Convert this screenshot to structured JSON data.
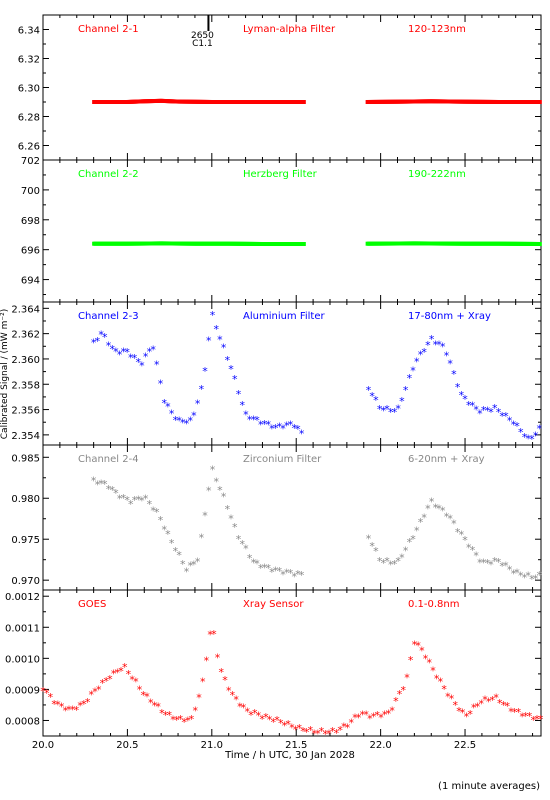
{
  "figure": {
    "xlabel": "Time / h UTC, 30 Jan 2028",
    "ylabel": "Calibrated Signal / (mW m⁻²)",
    "footnote": "(1 minute averages)",
    "marker": {
      "x": 20.98,
      "labels": [
        "2650",
        "C1.1"
      ]
    }
  },
  "colors": {
    "axis": "#000000",
    "red": "#ff0000",
    "green": "#00ff00",
    "blue": "#0000ff",
    "grey": "#888888"
  },
  "chart_data": [
    {
      "type": "scatter",
      "panel": "Channel 2-1",
      "labels": {
        "left": "Channel 2-1",
        "mid": "Lyman-alpha Filter",
        "right": "120-123nm"
      },
      "color": "#ff0000",
      "xlim": [
        20.0,
        22.95
      ],
      "ylim": [
        6.25,
        6.35
      ],
      "yticks": [
        "6.26",
        "6.28",
        "6.30",
        "6.32",
        "6.34"
      ],
      "gaps": [
        [
          21.55,
          21.92
        ]
      ],
      "series": [
        {
          "x": [
            20.3,
            20.5,
            20.6,
            20.7,
            20.8,
            21.0,
            21.2,
            21.4,
            21.55,
            21.92,
            22.1,
            22.3,
            22.5,
            22.7,
            22.95
          ],
          "y": [
            6.29,
            6.29,
            6.2905,
            6.2908,
            6.2903,
            6.29,
            6.29,
            6.29,
            6.29,
            6.29,
            6.2902,
            6.2905,
            6.2902,
            6.29,
            6.29
          ]
        }
      ]
    },
    {
      "type": "scatter",
      "panel": "Channel 2-2",
      "labels": {
        "left": "Channel 2-2",
        "mid": "Herzberg Filter",
        "right": "190-222nm"
      },
      "color": "#00ff00",
      "xlim": [
        20.0,
        22.95
      ],
      "ylim": [
        692.5,
        702
      ],
      "yticks": [
        "694",
        "696",
        "698",
        "700",
        "702"
      ],
      "gaps": [
        [
          21.55,
          21.92
        ]
      ],
      "series": [
        {
          "x": [
            20.3,
            20.5,
            20.7,
            20.9,
            21.1,
            21.3,
            21.55,
            21.92,
            22.2,
            22.5,
            22.7,
            22.95
          ],
          "y": [
            696.4,
            696.4,
            696.42,
            696.4,
            696.4,
            696.38,
            696.38,
            696.4,
            696.42,
            696.4,
            696.4,
            696.38
          ]
        }
      ]
    },
    {
      "type": "scatter",
      "panel": "Channel 2-3",
      "labels": {
        "left": "Channel 2-3",
        "mid": "Aluminium Filter",
        "right": "17-80nm + Xray"
      },
      "color": "#0000ff",
      "xlim": [
        20.0,
        22.95
      ],
      "ylim": [
        2.3532,
        2.3645
      ],
      "yticks": [
        "2.354",
        "2.356",
        "2.358",
        "2.360",
        "2.362",
        "2.364"
      ],
      "gaps": [
        [
          21.55,
          21.92
        ]
      ],
      "series": [
        {
          "x": [
            20.3,
            20.35,
            20.42,
            20.5,
            20.58,
            20.65,
            20.72,
            20.8,
            20.88,
            20.95,
            21.0,
            21.05,
            21.12,
            21.2,
            21.28,
            21.38,
            21.48,
            21.55,
            21.92,
            22.0,
            22.1,
            22.2,
            22.3,
            22.38,
            22.48,
            22.58,
            22.68,
            22.78,
            22.88,
            22.95
          ],
          "y": [
            2.3612,
            2.362,
            2.3605,
            2.3605,
            2.3595,
            2.361,
            2.3565,
            2.355,
            2.355,
            2.358,
            2.3635,
            2.3615,
            2.359,
            2.3555,
            2.355,
            2.3545,
            2.3548,
            2.3538,
            2.3578,
            2.356,
            2.3558,
            2.3595,
            2.3615,
            2.3608,
            2.357,
            2.3558,
            2.356,
            2.355,
            2.3535,
            2.3545
          ]
        }
      ]
    },
    {
      "type": "scatter",
      "panel": "Channel 2-4",
      "labels": {
        "left": "Channel 2-4",
        "mid": "Zirconium Filter",
        "right": "6-20nm + Xray"
      },
      "color": "#888888",
      "xlim": [
        20.0,
        22.95
      ],
      "ylim": [
        0.9688,
        0.9865
      ],
      "yticks": [
        "0.970",
        "0.975",
        "0.980",
        "0.985"
      ],
      "gaps": [
        [
          21.55,
          21.92
        ]
      ],
      "series": [
        {
          "x": [
            20.3,
            20.38,
            20.45,
            20.52,
            20.6,
            20.68,
            20.75,
            20.85,
            20.92,
            21.0,
            21.08,
            21.15,
            21.25,
            21.35,
            21.45,
            21.55,
            21.92,
            22.0,
            22.1,
            22.2,
            22.3,
            22.4,
            22.5,
            22.6,
            22.7,
            22.8,
            22.9,
            22.95
          ],
          "y": [
            0.982,
            0.9815,
            0.9802,
            0.9795,
            0.98,
            0.978,
            0.975,
            0.9712,
            0.9725,
            0.9835,
            0.9795,
            0.9755,
            0.972,
            0.9712,
            0.9708,
            0.9705,
            0.9755,
            0.9722,
            0.972,
            0.9755,
            0.9795,
            0.9778,
            0.9748,
            0.972,
            0.9722,
            0.9708,
            0.9702,
            0.9705
          ]
        }
      ]
    },
    {
      "type": "scatter",
      "panel": "GOES",
      "labels": {
        "left": "GOES",
        "mid": "Xray Sensor",
        "right": "0.1-0.8nm"
      },
      "color": "#ff0000",
      "xlim": [
        20.0,
        22.95
      ],
      "ylim": [
        0.00075,
        0.00122
      ],
      "yticks": [
        "0.0008",
        "0.0009",
        "0.0010",
        "0.0011",
        "0.0012"
      ],
      "gaps": [],
      "series": [
        {
          "x": [
            20.0,
            20.08,
            20.16,
            20.24,
            20.32,
            20.4,
            20.48,
            20.55,
            20.6,
            20.66,
            20.72,
            20.8,
            20.88,
            20.94,
            21.0,
            21.05,
            21.12,
            21.2,
            21.3,
            21.42,
            21.52,
            21.62,
            21.72,
            21.8,
            21.88,
            21.95,
            22.05,
            22.15,
            22.2,
            22.25,
            22.32,
            22.4,
            22.5,
            22.6,
            22.68,
            22.78,
            22.88,
            22.95
          ],
          "y": [
            0.0009,
            0.00085,
            0.00083,
            0.00085,
            0.0009,
            0.00094,
            0.00097,
            0.00092,
            0.00088,
            0.00085,
            0.00082,
            0.0008,
            0.0008,
            0.0009,
            0.00111,
            0.00096,
            0.00088,
            0.00083,
            0.00081,
            0.00079,
            0.00077,
            0.00076,
            0.00076,
            0.00078,
            0.00082,
            0.00081,
            0.00082,
            0.00092,
            0.00105,
            0.00102,
            0.00095,
            0.00088,
            0.00081,
            0.00086,
            0.00087,
            0.00083,
            0.00081,
            0.0008
          ]
        }
      ]
    }
  ]
}
